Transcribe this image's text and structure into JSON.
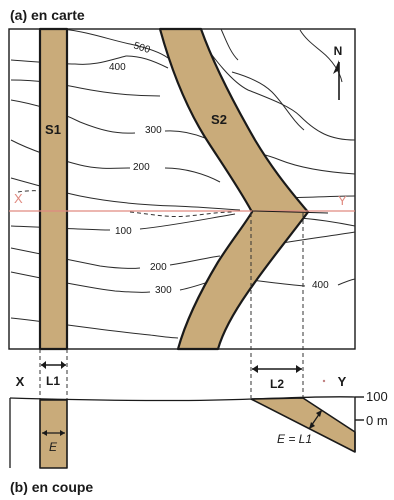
{
  "panel_a": {
    "title": "(a) en carte",
    "north_label": "N",
    "layer_labels": {
      "s1": "S1",
      "s2": "S2"
    },
    "contour_labels": [
      "500",
      "400",
      "300",
      "200",
      "100",
      "200",
      "300",
      "400"
    ],
    "section_line": {
      "start_label": "X",
      "end_label": "Y"
    }
  },
  "section_labels": {
    "x": "X",
    "y": "Y",
    "l1": "L1",
    "l2": "L2",
    "elev_100": "100",
    "elev_0": "0 m"
  },
  "panel_b": {
    "title": "(b) en coupe",
    "thickness_label": "E",
    "equation": "E = L1"
  },
  "colors": {
    "layer_fill": "#c9ab7a",
    "section_line": "#e08a80",
    "ink": "#1a1a1a"
  }
}
